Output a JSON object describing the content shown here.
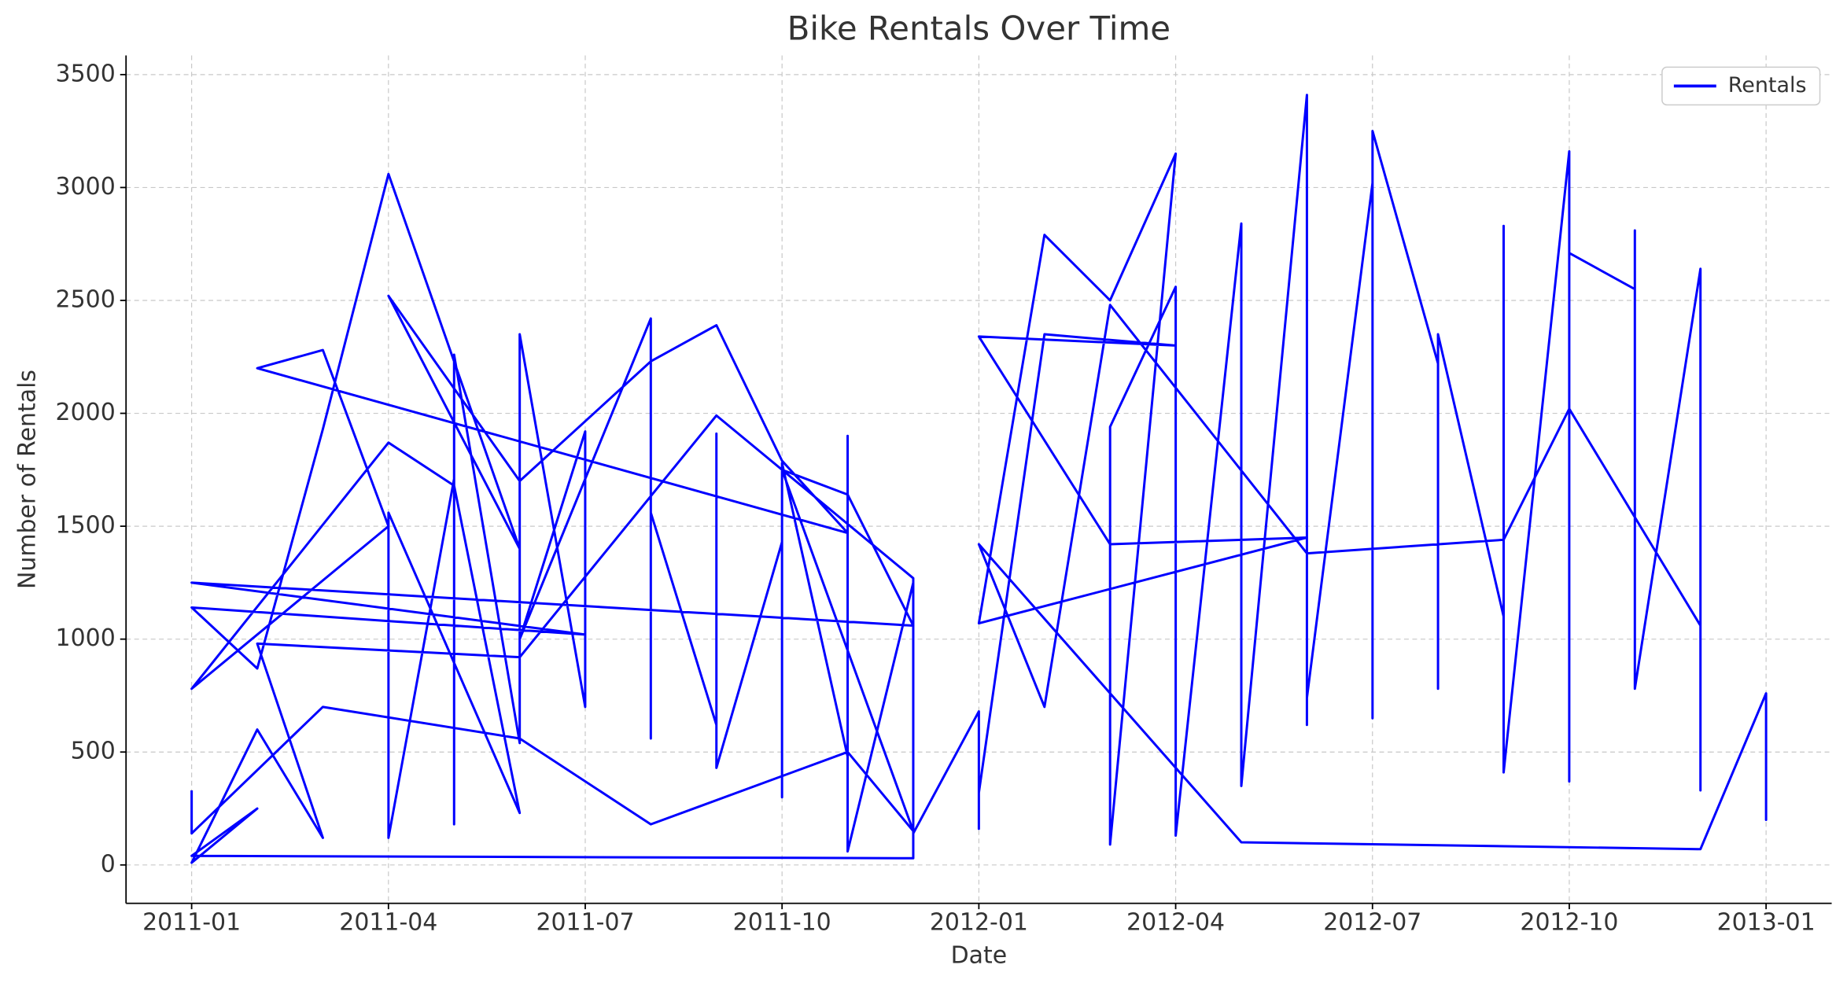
{
  "chart_data": {
    "type": "line",
    "title": "Bike Rentals Over Time",
    "x_label": "Date",
    "y_label": "Number of Rentals",
    "x": [
      "2011-01",
      "2011-01",
      "2011-03",
      "2011-06",
      "2011-08",
      "2011-11",
      "2011-12",
      "2011-10",
      "2011-11",
      "2011-12",
      "2011-01",
      "2011-07",
      "2011-01",
      "2011-02",
      "2011-03",
      "2011-04",
      "2011-06",
      "2011-04",
      "2011-06",
      "2011-08",
      "2011-09",
      "2011-10",
      "2011-11",
      "2011-02",
      "2011-03",
      "2011-04",
      "2011-01",
      "2011-04",
      "2011-05",
      "2011-06",
      "2011-04",
      "2011-04",
      "2011-05",
      "2011-05",
      "2011-05",
      "2011-06",
      "2011-06",
      "2011-07",
      "2011-07",
      "2011-07",
      "2011-07",
      "2011-06",
      "2011-08",
      "2011-08",
      "2011-08",
      "2011-09",
      "2011-09",
      "2011-09",
      "2011-10",
      "2011-10",
      "2011-10",
      "2011-11",
      "2011-11",
      "2011-11",
      "2011-12",
      "2011-12",
      "2011-01",
      "2011-02",
      "2011-01",
      "2011-02",
      "2011-03",
      "2011-02",
      "2011-06",
      "2011-09",
      "2011-12",
      "2011-12",
      "2012-01",
      "2012-01",
      "2012-01",
      "2012-01",
      "2012-02",
      "2012-04",
      "2012-01",
      "2012-03",
      "2012-06",
      "2012-01",
      "2012-02",
      "2012-03",
      "2012-04",
      "2012-03",
      "2012-03",
      "2012-04",
      "2012-04",
      "2012-05",
      "2012-05",
      "2012-06",
      "2012-06",
      "2012-06",
      "2012-06",
      "2012-07",
      "2012-07",
      "2012-07",
      "2012-07",
      "2012-08",
      "2012-08",
      "2012-08",
      "2012-09",
      "2012-09",
      "2012-09",
      "2012-10",
      "2012-10",
      "2012-10",
      "2012-11",
      "2012-11",
      "2012-11",
      "2012-11",
      "2012-12",
      "2012-12",
      "2012-12",
      "2012-12",
      "2012-12",
      "2012-10",
      "2012-09",
      "2012-06",
      "2012-03",
      "2012-02",
      "2012-01",
      "2012-05",
      "2012-12",
      "2013-01",
      "2013-01",
      "2013-01"
    ],
    "series": [
      {
        "name": "Rentals",
        "color": "#0000ff",
        "values": [
          330,
          140,
          700,
          560,
          180,
          500,
          150,
          1750,
          1640,
          1060,
          1250,
          1020,
          1140,
          870,
          1930,
          3060,
          1400,
          2520,
          1700,
          2230,
          2390,
          1790,
          1470,
          2200,
          2280,
          1500,
          780,
          1870,
          1680,
          230,
          1560,
          120,
          1710,
          180,
          2260,
          540,
          2350,
          700,
          1800,
          750,
          1920,
          1000,
          2420,
          560,
          1560,
          620,
          1910,
          430,
          1430,
          300,
          1780,
          480,
          1900,
          60,
          1250,
          30,
          40,
          250,
          10,
          600,
          120,
          980,
          920,
          1990,
          1270,
          140,
          680,
          160,
          420,
          320,
          2350,
          2300,
          2340,
          1420,
          1450,
          1070,
          2790,
          2500,
          3150,
          90,
          1940,
          2560,
          130,
          2840,
          350,
          3410,
          620,
          3280,
          740,
          3020,
          650,
          2960,
          3250,
          2220,
          780,
          2350,
          1100,
          2830,
          410,
          3160,
          370,
          2710,
          2550,
          2000,
          2810,
          780,
          2640,
          2290,
          330,
          2180,
          1060,
          2020,
          1440,
          1380,
          2480,
          700,
          1420,
          100,
          70,
          760,
          200,
          440
        ]
      }
    ],
    "xlim": [
      "2010-12",
      "2013-02"
    ],
    "xticks": [
      "2011-01",
      "2011-04",
      "2011-07",
      "2011-10",
      "2012-01",
      "2012-04",
      "2012-07",
      "2012-10",
      "2013-01"
    ],
    "ylim": [
      -170,
      3585
    ],
    "yticks": [
      0,
      500,
      1000,
      1500,
      2000,
      2500,
      3000,
      3500
    ],
    "grid": true,
    "legend": "upper right"
  }
}
